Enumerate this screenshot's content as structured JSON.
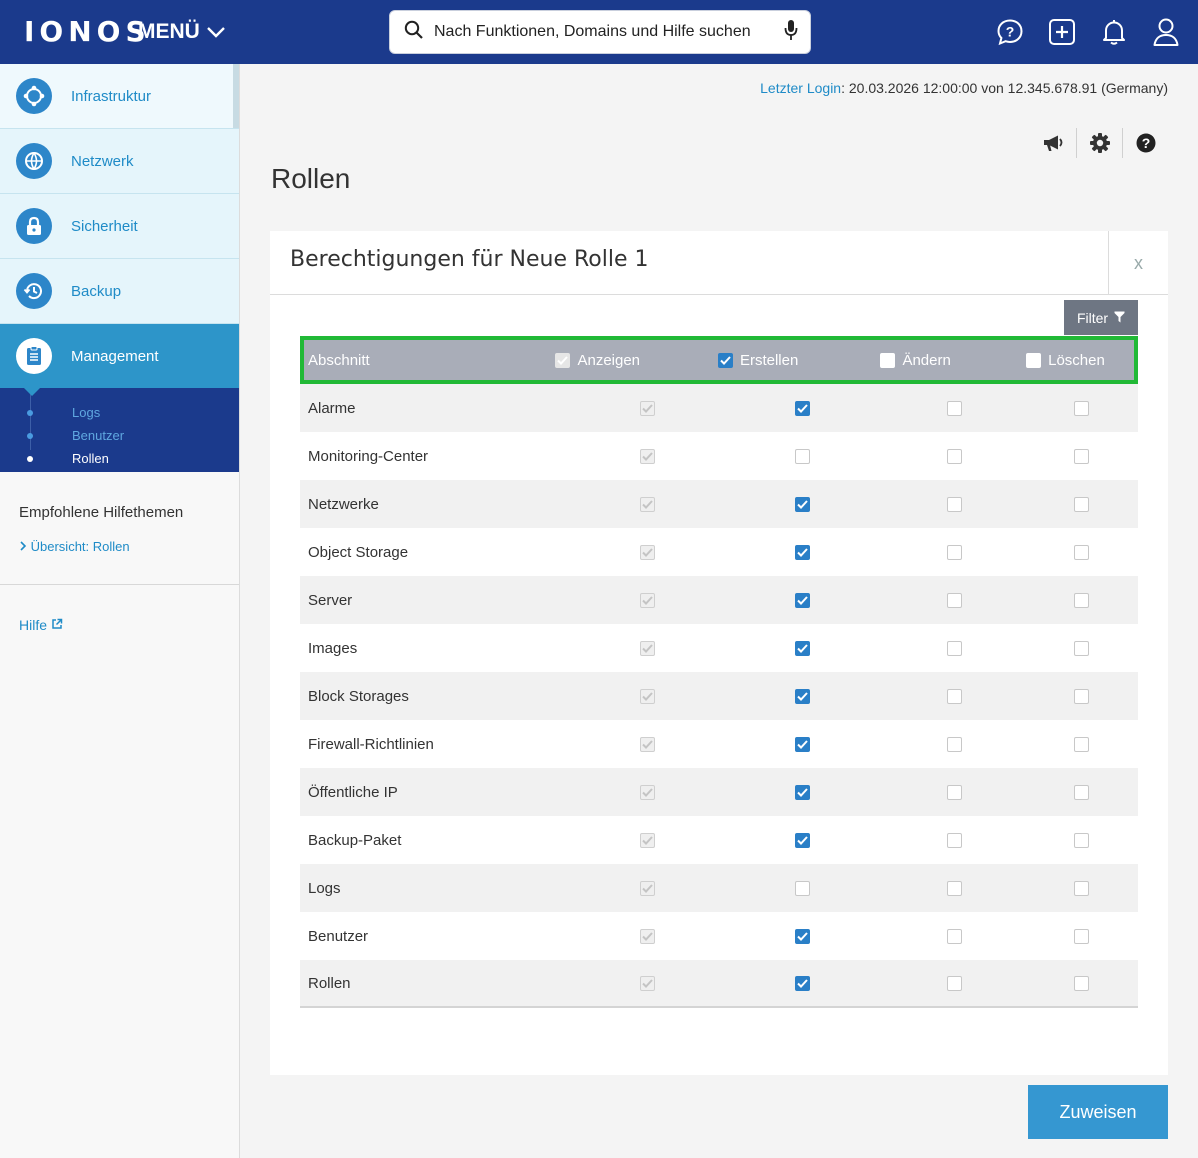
{
  "header": {
    "logo": "IONOS",
    "menu_label": "MENÜ",
    "search_placeholder": "Nach Funktionen, Domains und Hilfe suchen",
    "icons": [
      "help-chat-icon",
      "plus-box-icon",
      "bell-icon",
      "user-icon"
    ]
  },
  "sidebar": {
    "items": [
      {
        "label": "Infrastruktur",
        "icon": "infrastructure-icon"
      },
      {
        "label": "Netzwerk",
        "icon": "network-globe-icon"
      },
      {
        "label": "Sicherheit",
        "icon": "lock-icon"
      },
      {
        "label": "Backup",
        "icon": "backup-clock-icon"
      },
      {
        "label": "Management",
        "icon": "clipboard-icon",
        "active": true
      }
    ],
    "sub_items": [
      {
        "label": "Logs"
      },
      {
        "label": "Benutzer"
      },
      {
        "label": "Rollen",
        "current": true
      }
    ],
    "help_heading": "Empfohlene Hilfethemen",
    "help_link": "Übersicht: Rollen",
    "hilfe_label": "Hilfe"
  },
  "status": {
    "last_login_label": "Letzter Login",
    "last_login_value": ": 20.03.2026 12:00:00 von 12.345.678.91 (Germany)"
  },
  "toolbar_icons": [
    "megaphone-icon",
    "gear-icon",
    "question-icon"
  ],
  "page": {
    "title": "Rollen"
  },
  "card": {
    "title": "Berechtigungen für Neue Rolle 1",
    "close_label": "x",
    "filter_label": "Filter"
  },
  "table": {
    "headers": {
      "section": "Abschnitt",
      "view": "Anzeigen",
      "create": "Erstellen",
      "edit": "Ändern",
      "delete": "Löschen"
    },
    "header_checks": {
      "view": true,
      "create": true,
      "edit": false,
      "delete": false
    },
    "rows": [
      {
        "name": "Alarme",
        "view": true,
        "create": true,
        "edit": false,
        "delete": false
      },
      {
        "name": "Monitoring-Center",
        "view": true,
        "create": false,
        "edit": false,
        "delete": false
      },
      {
        "name": "Netzwerke",
        "view": true,
        "create": true,
        "edit": false,
        "delete": false
      },
      {
        "name": "Object Storage",
        "view": true,
        "create": true,
        "edit": false,
        "delete": false
      },
      {
        "name": "Server",
        "view": true,
        "create": true,
        "edit": false,
        "delete": false
      },
      {
        "name": "Images",
        "view": true,
        "create": true,
        "edit": false,
        "delete": false
      },
      {
        "name": "Block Storages",
        "view": true,
        "create": true,
        "edit": false,
        "delete": false
      },
      {
        "name": "Firewall-Richtlinien",
        "view": true,
        "create": true,
        "edit": false,
        "delete": false
      },
      {
        "name": "Öffentliche IP",
        "view": true,
        "create": true,
        "edit": false,
        "delete": false
      },
      {
        "name": "Backup-Paket",
        "view": true,
        "create": true,
        "edit": false,
        "delete": false
      },
      {
        "name": "Logs",
        "view": true,
        "create": false,
        "edit": false,
        "delete": false
      },
      {
        "name": "Benutzer",
        "view": true,
        "create": true,
        "edit": false,
        "delete": false
      },
      {
        "name": "Rollen",
        "view": true,
        "create": true,
        "edit": false,
        "delete": false
      }
    ]
  },
  "actions": {
    "assign_label": "Zuweisen"
  },
  "colors": {
    "header_bg": "#1b3a8c",
    "accent": "#2d95c9",
    "checkbox_on": "#2a7fc7",
    "highlight": "#21b936"
  }
}
